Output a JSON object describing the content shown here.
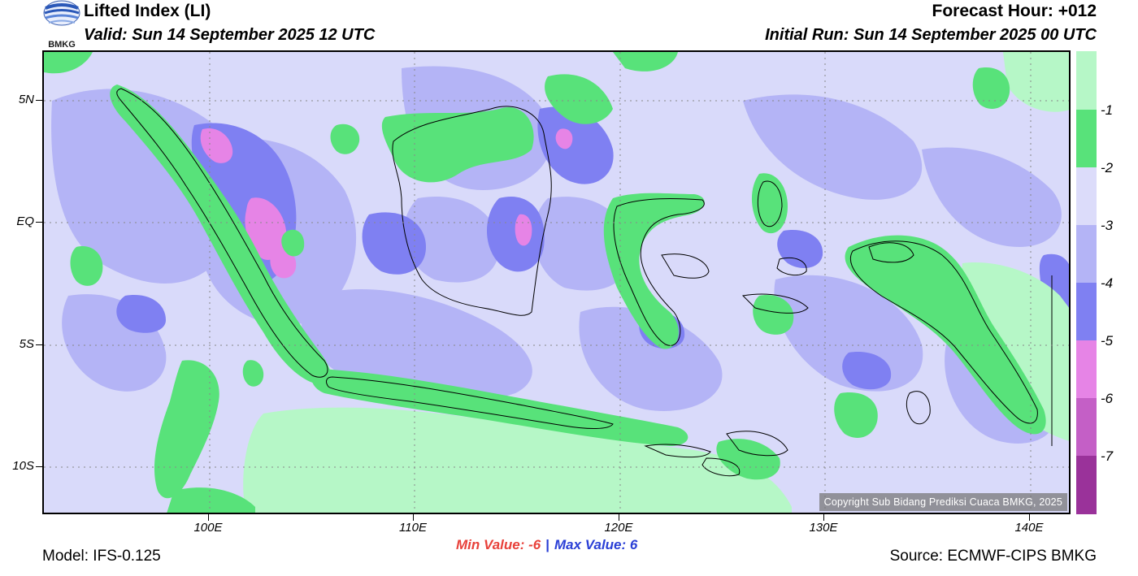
{
  "header": {
    "title": "Lifted Index (LI)",
    "valid": "Valid: Sun 14 September 2025 12 UTC",
    "forecast_hour": "Forecast Hour: +012",
    "initial_run": "Initial Run: Sun 14 September 2025 00 UTC",
    "logo_text": "BMKG"
  },
  "axes": {
    "lat": [
      "5N",
      "EQ",
      "5S",
      "10S"
    ],
    "lon": [
      "100E",
      "110E",
      "120E",
      "130E",
      "140E"
    ]
  },
  "colorbar": {
    "labels": [
      "-1",
      "-2",
      "-3",
      "-4",
      "-5",
      "-6",
      "-7"
    ],
    "colors": [
      "#b6f7c7",
      "#58e27a",
      "#dcdcfa",
      "#b4b4f6",
      "#7f80f2",
      "#e684e6",
      "#c45fc6",
      "#9a329a"
    ]
  },
  "colors": {
    "green_light": "#b6f7c7",
    "green": "#58e27a",
    "lavender": "#dcdcfa",
    "periwinkle": "#b4b4f6",
    "blue": "#7f80f2",
    "pink": "#e684e6"
  },
  "copyright": "Copyright Sub Bidang Prediksi Cuaca BMKG, 2025",
  "footer": {
    "min_label": "Min Value:  -6",
    "separator": "|",
    "max_label": "Max Value:   6",
    "model": "Model: IFS-0.125",
    "source": "Source: ECMWF-CIPS BMKG"
  }
}
